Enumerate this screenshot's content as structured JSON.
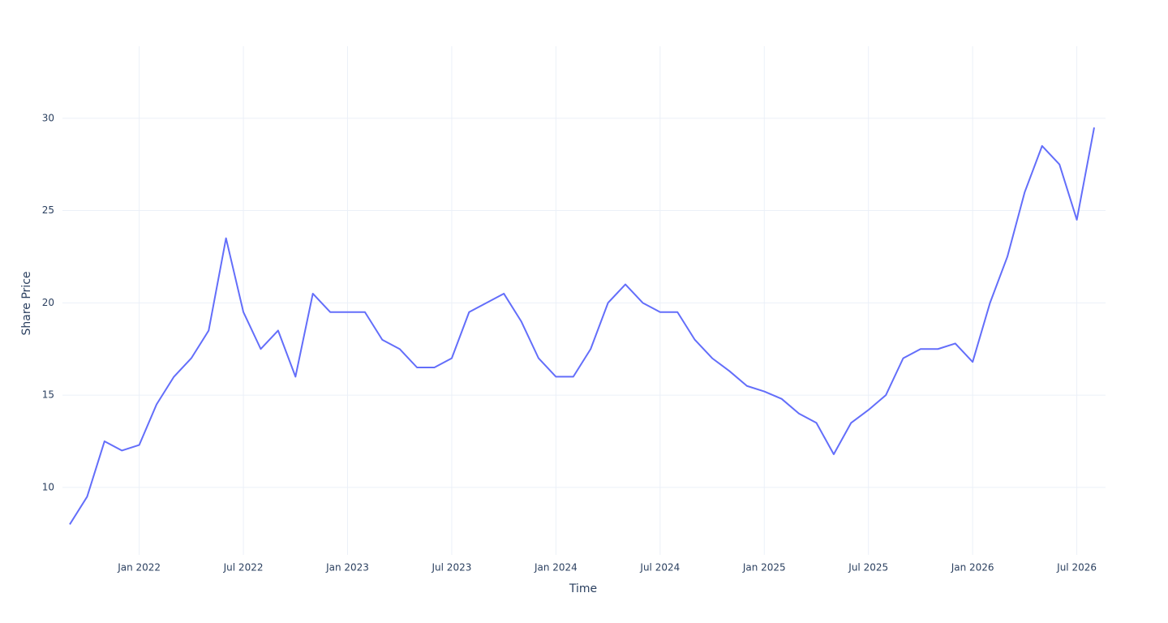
{
  "chart_data": {
    "type": "line",
    "xlabel": "Time",
    "ylabel": "Share Price",
    "x": [
      "2021-09",
      "2021-10",
      "2021-11",
      "2021-12",
      "2022-01",
      "2022-02",
      "2022-03",
      "2022-04",
      "2022-05",
      "2022-06",
      "2022-07",
      "2022-08",
      "2022-09",
      "2022-10",
      "2022-11",
      "2022-12",
      "2023-01",
      "2023-02",
      "2023-03",
      "2023-04",
      "2023-05",
      "2023-06",
      "2023-07",
      "2023-08",
      "2023-09",
      "2023-10",
      "2023-11",
      "2023-12",
      "2024-01",
      "2024-02",
      "2024-03",
      "2024-04",
      "2024-05",
      "2024-06",
      "2024-07",
      "2024-08",
      "2024-09",
      "2024-10",
      "2024-11",
      "2024-12",
      "2025-01",
      "2025-02",
      "2025-03",
      "2025-04",
      "2025-05",
      "2025-06",
      "2025-07",
      "2025-08",
      "2025-09",
      "2025-10",
      "2025-11",
      "2025-12",
      "2026-01",
      "2026-02",
      "2026-03",
      "2026-04",
      "2026-05",
      "2026-06",
      "2026-07",
      "2026-08"
    ],
    "series": [
      {
        "color": "#636efa",
        "values": [
          8.0,
          9.5,
          12.5,
          12.0,
          12.3,
          14.5,
          16,
          17,
          18.5,
          23.5,
          19.5,
          17.5,
          18.5,
          16,
          20.5,
          19.5,
          19.5,
          19.5,
          18,
          17.5,
          16.5,
          16.5,
          17,
          19.5,
          20,
          20.5,
          19,
          17,
          16,
          16,
          17.5,
          20,
          21,
          20,
          19.5,
          19.5,
          18,
          17,
          16.3,
          15.5,
          15.2,
          14.8,
          14,
          13.5,
          11.8,
          13.5,
          14.2,
          15,
          17,
          17.5,
          17.5,
          17.8,
          16.8,
          20,
          22.5,
          26,
          28.5,
          27.5,
          24.5,
          29.5
        ]
      }
    ],
    "xlim": [
      "2021-09",
      "2026-08"
    ],
    "xticks": [
      {
        "value": "2022-01",
        "label": "Jan 2022"
      },
      {
        "value": "2022-07",
        "label": "Jul 2022"
      },
      {
        "value": "2023-01",
        "label": "Jan 2023"
      },
      {
        "value": "2023-07",
        "label": "Jul 2023"
      },
      {
        "value": "2024-01",
        "label": "Jan 2024"
      },
      {
        "value": "2024-07",
        "label": "Jul 2024"
      },
      {
        "value": "2025-01",
        "label": "Jan 2025"
      },
      {
        "value": "2025-07",
        "label": "Jul 2025"
      },
      {
        "value": "2026-01",
        "label": "Jan 2026"
      },
      {
        "value": "2026-07",
        "label": "Jul 2026"
      }
    ],
    "ylim": [
      6.35,
      33.9
    ],
    "yticks": [
      10,
      15,
      20,
      25,
      30
    ],
    "grid": true
  }
}
